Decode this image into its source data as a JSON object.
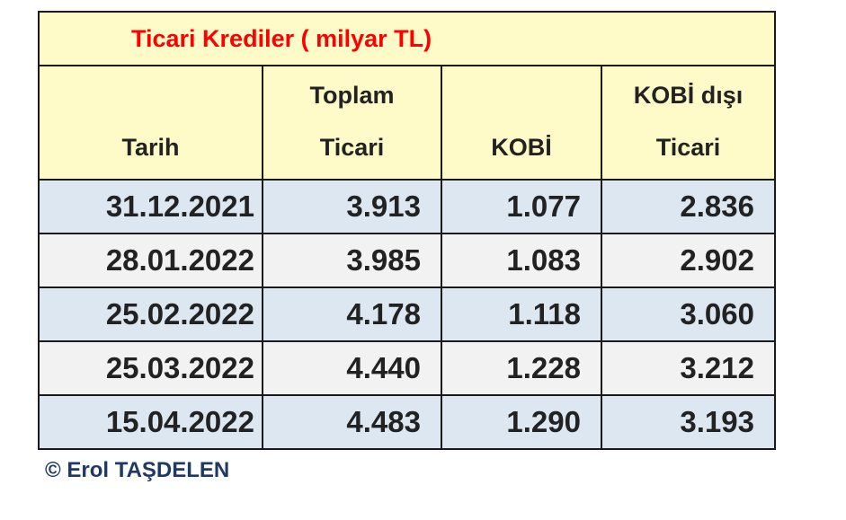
{
  "table": {
    "title": "Ticari Krediler ( milyar TL)",
    "headers": [
      [
        "Tarih"
      ],
      [
        "Toplam",
        "Ticari"
      ],
      [
        "KOBİ"
      ],
      [
        "KOBİ dışı",
        "Ticari"
      ]
    ],
    "rows": [
      [
        "31.12.2021",
        "3.913",
        "1.077",
        "2.836"
      ],
      [
        "28.01.2022",
        "3.985",
        "1.083",
        "2.902"
      ],
      [
        "25.02.2022",
        "4.178",
        "1.118",
        "3.060"
      ],
      [
        "25.03.2022",
        "4.440",
        "1.228",
        "3.212"
      ],
      [
        "15.04.2022",
        "4.483",
        "1.290",
        "3.193"
      ]
    ]
  },
  "footer": "© Erol TAŞDELEN"
}
